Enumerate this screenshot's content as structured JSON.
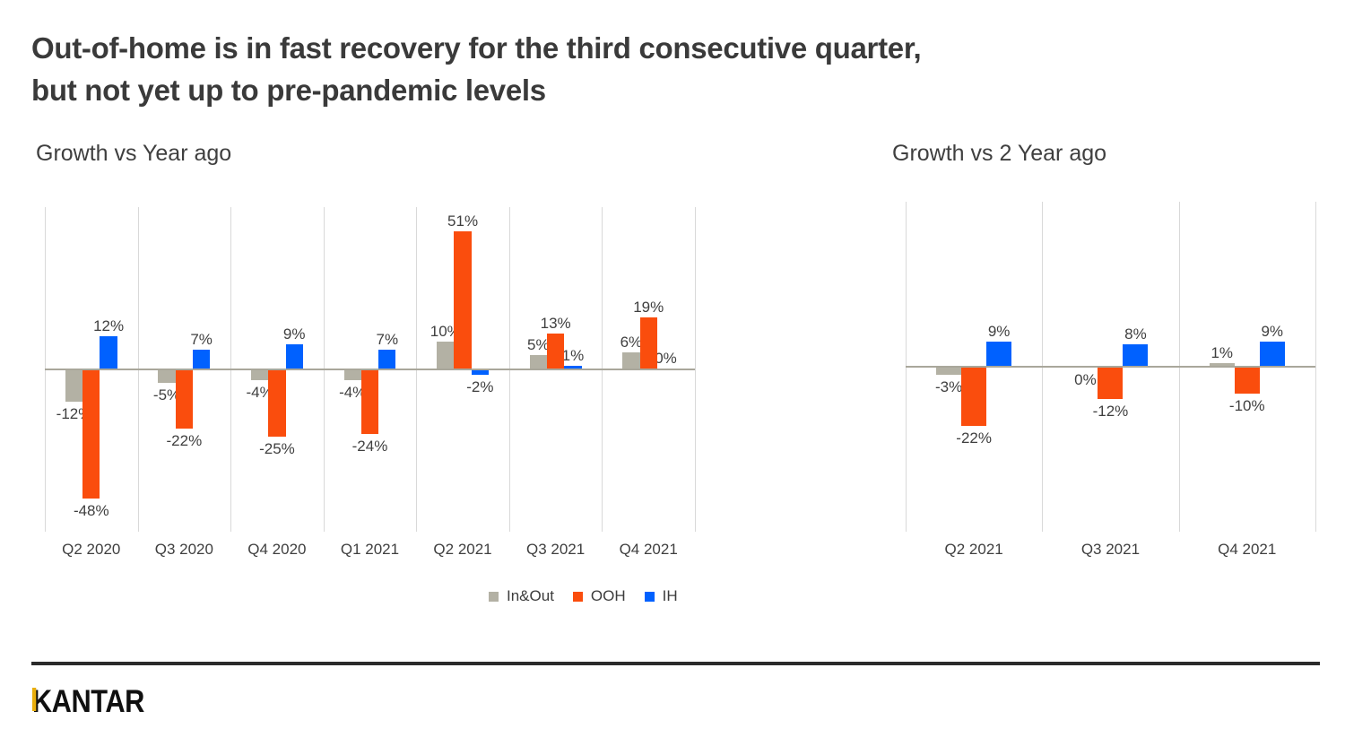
{
  "title": {
    "lines": [
      "Out-of-home is in fast recovery for the third consecutive quarter,",
      "but not yet up to pre-pandemic levels"
    ]
  },
  "colors": {
    "in_out": "#b3b1a4",
    "ooh": "#fa4d0d",
    "ih": "#0061ff",
    "gridline": "#d9d9d9",
    "zero_axis": "#a9a79b",
    "text": "#3f3f3f",
    "kantar_gold": "#e9ae0c"
  },
  "chart_data": [
    {
      "type": "bar",
      "title": "Growth vs Year ago",
      "categories": [
        "Q2 2020",
        "Q3 2020",
        "Q4 2020",
        "Q1 2021",
        "Q2 2021",
        "Q3 2021",
        "Q4 2021"
      ],
      "series": [
        {
          "name": "In&Out",
          "color": "#b3b1a4",
          "values": [
            -12,
            -5,
            -4,
            -4,
            10,
            5,
            6
          ],
          "labels": [
            "-12%",
            "-5%",
            "-4%",
            "-4%",
            "10%",
            "5%",
            "6%"
          ]
        },
        {
          "name": "OOH",
          "color": "#fa4d0d",
          "values": [
            -48,
            -22,
            -25,
            -24,
            51,
            13,
            19
          ],
          "labels": [
            "-48%",
            "-22%",
            "-25%",
            "-24%",
            "51%",
            "13%",
            "19%"
          ]
        },
        {
          "name": "IH",
          "color": "#0061ff",
          "values": [
            12,
            7,
            9,
            7,
            -2,
            1,
            0
          ],
          "labels": [
            "12%",
            "7%",
            "9%",
            "7%",
            "-2%",
            "1%",
            "0%"
          ]
        }
      ],
      "xlabel": "",
      "ylabel": "",
      "ylim": [
        -60,
        60
      ],
      "grid": "vertical-panel-dividers-only",
      "data_labels": "outside-end",
      "zero_label_position": "above"
    },
    {
      "type": "bar",
      "title": "Growth vs 2 Year ago",
      "categories": [
        "Q2 2021",
        "Q3 2021",
        "Q4 2021"
      ],
      "series": [
        {
          "name": "In&Out",
          "color": "#b3b1a4",
          "values": [
            -3,
            0,
            1
          ],
          "labels": [
            "-3%",
            "0%",
            "1%"
          ]
        },
        {
          "name": "OOH",
          "color": "#fa4d0d",
          "values": [
            -22,
            -12,
            -10
          ],
          "labels": [
            "-22%",
            "-12%",
            "-10%"
          ]
        },
        {
          "name": "IH",
          "color": "#0061ff",
          "values": [
            9,
            8,
            9
          ],
          "labels": [
            "9%",
            "8%",
            "9%"
          ]
        }
      ],
      "xlabel": "",
      "ylabel": "",
      "ylim": [
        -61,
        61
      ],
      "grid": "vertical-panel-dividers-only",
      "data_labels": "outside-end",
      "zero_label_position": "below"
    }
  ],
  "legend": {
    "position": "bottom-center-under-left-chart",
    "items": [
      {
        "label": "In&Out",
        "color": "#b3b1a4"
      },
      {
        "label": "OOH",
        "color": "#fa4d0d"
      },
      {
        "label": "IH",
        "color": "#0061ff"
      }
    ]
  },
  "footer": {
    "brand": "KANTAR"
  }
}
